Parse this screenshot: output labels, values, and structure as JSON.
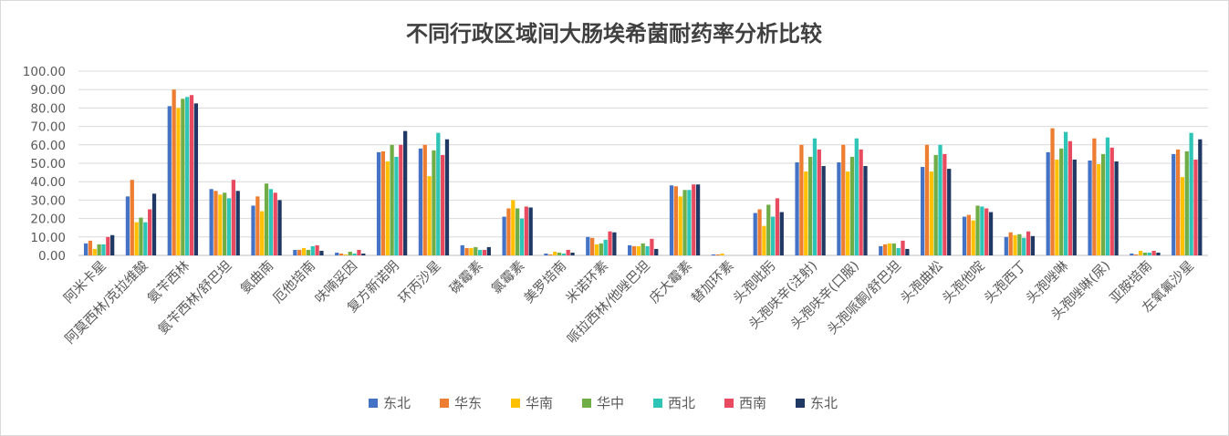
{
  "chart_data": {
    "type": "bar",
    "title": "不同行政区域间大肠埃希菌耐药率分析比较",
    "ylim": [
      0,
      100
    ],
    "ytick_labels": [
      "0.00",
      "10.00",
      "20.00",
      "30.00",
      "40.00",
      "50.00",
      "60.00",
      "70.00",
      "80.00",
      "90.00",
      "100.00"
    ],
    "grid": true,
    "legend_position": "bottom",
    "categories": [
      "阿米卡星",
      "阿莫西林/克拉维酸",
      "氨苄西林",
      "氨苄西林/舒巴坦",
      "氨曲南",
      "厄他培南",
      "呋喃妥因",
      "复方新诺明",
      "环丙沙星",
      "磷霉素",
      "氯霉素",
      "美罗培南",
      "米诺环素",
      "哌拉西林/他唑巴坦",
      "庆大霉素",
      "替加环素",
      "头孢吡肟",
      "头孢呋辛(注射)",
      "头孢呋辛(口服)",
      "头孢哌酮/舒巴坦",
      "头孢曲松",
      "头孢他啶",
      "头孢西丁",
      "头孢唑啉",
      "头孢唑啉(尿)",
      "亚胺培南",
      "左氧氟沙星"
    ],
    "series": [
      {
        "name": "东北",
        "color": "#4472c4",
        "values": [
          6.5,
          32,
          81,
          36,
          27,
          3,
          1.5,
          56,
          58,
          5.5,
          21,
          1,
          10,
          5.5,
          38,
          0.5,
          23,
          50.5,
          50.5,
          5,
          48,
          21,
          10,
          56,
          51.5,
          1,
          55
        ]
      },
      {
        "name": "华东",
        "color": "#ed7d31",
        "values": [
          8,
          41,
          90,
          35,
          32,
          3,
          1,
          56.5,
          60,
          4,
          25.5,
          0.5,
          9.5,
          5,
          37.5,
          0.5,
          25,
          60,
          60,
          6,
          60,
          22,
          12.5,
          69,
          63.5,
          0.5,
          57.5
        ]
      },
      {
        "name": "华南",
        "color": "#ffc000",
        "values": [
          3.5,
          18,
          80,
          33,
          24,
          4,
          0.5,
          51,
          43,
          4,
          30,
          2,
          6,
          5,
          32,
          1,
          16,
          45.5,
          45.5,
          6.5,
          45.5,
          19,
          11,
          52,
          49.5,
          2.5,
          42.5
        ]
      },
      {
        "name": "华中",
        "color": "#70ad47",
        "values": [
          6,
          20.5,
          85,
          34,
          39,
          3,
          2,
          60,
          57,
          4.5,
          25.5,
          1.5,
          6.5,
          6.5,
          35.5,
          0,
          27.5,
          53.5,
          53.5,
          6.5,
          54.5,
          27,
          11.5,
          58,
          55,
          1.5,
          56.5
        ]
      },
      {
        "name": "西北",
        "color": "#2ec4b6",
        "values": [
          6,
          18,
          86,
          31,
          36,
          5,
          1,
          53.5,
          66.5,
          3,
          20,
          1,
          8.5,
          5,
          35.5,
          0,
          21,
          63.5,
          63.5,
          4,
          60,
          26.5,
          9.5,
          67,
          64,
          1.5,
          66.5
        ]
      },
      {
        "name": "西南",
        "color": "#e84a5f",
        "values": [
          10,
          25,
          87,
          41,
          34,
          5.5,
          3,
          60,
          54.5,
          3,
          26.5,
          3,
          13,
          9,
          38.5,
          0,
          31,
          57.5,
          57.5,
          8,
          55,
          25.5,
          13,
          62,
          58.5,
          2.5,
          52
        ]
      },
      {
        "name": "东北",
        "color": "#203864",
        "values": [
          11,
          33.5,
          82.5,
          35,
          30,
          2.5,
          1,
          67.5,
          63,
          4.5,
          26,
          1.5,
          12.5,
          3.5,
          38.5,
          0,
          23.5,
          48.5,
          48.5,
          3.5,
          47,
          23.5,
          10.5,
          52,
          51,
          1.5,
          63
        ]
      }
    ]
  }
}
